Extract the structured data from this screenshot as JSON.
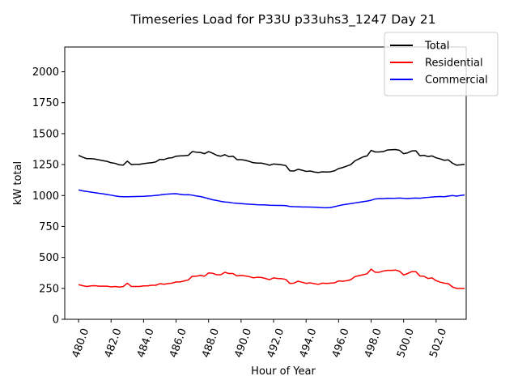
{
  "chart_data": {
    "type": "line",
    "title": "Timeseries Load for P33U p33uhs3_1247  Day 21",
    "xlabel": "Hour of Year",
    "ylabel": "kW total",
    "xlim": [
      479.15,
      503.85
    ],
    "ylim": [
      0,
      2200
    ],
    "xticks": [
      480.0,
      482.0,
      484.0,
      486.0,
      488.0,
      490.0,
      492.0,
      494.0,
      496.0,
      498.0,
      500.0,
      502.0
    ],
    "xtick_labels": [
      "480.0",
      "482.0",
      "484.0",
      "486.0",
      "488.0",
      "490.0",
      "492.0",
      "494.0",
      "496.0",
      "498.0",
      "500.0",
      "502.0"
    ],
    "yticks": [
      0,
      250,
      500,
      750,
      1000,
      1250,
      1500,
      1750,
      2000
    ],
    "ytick_labels": [
      "0",
      "250",
      "500",
      "750",
      "1000",
      "1250",
      "1500",
      "1750",
      "2000"
    ],
    "legend_position": "top-right",
    "grid": false,
    "series": [
      {
        "name": "Total",
        "color": "#000000",
        "x_start": 480.0,
        "x_step": 0.25,
        "values": [
          1325,
          1310,
          1298,
          1298,
          1295,
          1288,
          1282,
          1276,
          1265,
          1260,
          1248,
          1246,
          1278,
          1250,
          1252,
          1252,
          1258,
          1262,
          1265,
          1272,
          1292,
          1290,
          1302,
          1305,
          1318,
          1320,
          1322,
          1325,
          1355,
          1350,
          1348,
          1338,
          1355,
          1342,
          1325,
          1318,
          1330,
          1314,
          1318,
          1290,
          1290,
          1285,
          1276,
          1265,
          1262,
          1262,
          1255,
          1245,
          1255,
          1252,
          1248,
          1242,
          1200,
          1198,
          1212,
          1205,
          1195,
          1198,
          1190,
          1186,
          1192,
          1190,
          1192,
          1200,
          1218,
          1226,
          1238,
          1250,
          1280,
          1296,
          1312,
          1320,
          1365,
          1352,
          1352,
          1355,
          1368,
          1370,
          1372,
          1365,
          1338,
          1345,
          1360,
          1362,
          1322,
          1325,
          1315,
          1320,
          1305,
          1296,
          1285,
          1288,
          1262,
          1245,
          1248,
          1252
        ]
      },
      {
        "name": "Residential",
        "color": "#ff0000",
        "x_start": 480.0,
        "x_step": 0.25,
        "values": [
          280,
          272,
          265,
          270,
          272,
          268,
          268,
          268,
          262,
          265,
          260,
          265,
          292,
          265,
          265,
          265,
          270,
          270,
          275,
          275,
          288,
          283,
          288,
          292,
          302,
          302,
          310,
          318,
          348,
          348,
          355,
          348,
          375,
          372,
          360,
          360,
          380,
          370,
          370,
          350,
          355,
          350,
          345,
          335,
          340,
          338,
          330,
          320,
          335,
          330,
          328,
          322,
          290,
          292,
          308,
          300,
          290,
          295,
          288,
          282,
          292,
          290,
          292,
          295,
          310,
          308,
          312,
          320,
          345,
          352,
          360,
          368,
          405,
          380,
          380,
          390,
          395,
          395,
          398,
          388,
          358,
          370,
          385,
          385,
          350,
          348,
          330,
          335,
          312,
          300,
          292,
          288,
          262,
          250,
          250,
          250
        ]
      },
      {
        "name": "Commercial",
        "color": "#0000ff",
        "x_start": 480.0,
        "x_step": 0.25,
        "values": [
          1045,
          1038,
          1033,
          1028,
          1023,
          1018,
          1014,
          1008,
          1003,
          997,
          992,
          990,
          990,
          991,
          992,
          993,
          994,
          996,
          998,
          1001,
          1004,
          1009,
          1012,
          1014,
          1015,
          1010,
          1006,
          1007,
          1003,
          996,
          992,
          984,
          975,
          966,
          960,
          953,
          948,
          945,
          940,
          937,
          935,
          932,
          930,
          928,
          926,
          925,
          924,
          922,
          921,
          920,
          920,
          918,
          912,
          910,
          909,
          908,
          908,
          907,
          906,
          904,
          902,
          901,
          903,
          910,
          918,
          925,
          930,
          935,
          940,
          945,
          950,
          955,
          962,
          972,
          975,
          975,
          978,
          977,
          978,
          980,
          977,
          976,
          978,
          980,
          978,
          982,
          985,
          988,
          990,
          992,
          990,
          995,
          1000,
          995,
          1000,
          1005
        ]
      }
    ]
  }
}
